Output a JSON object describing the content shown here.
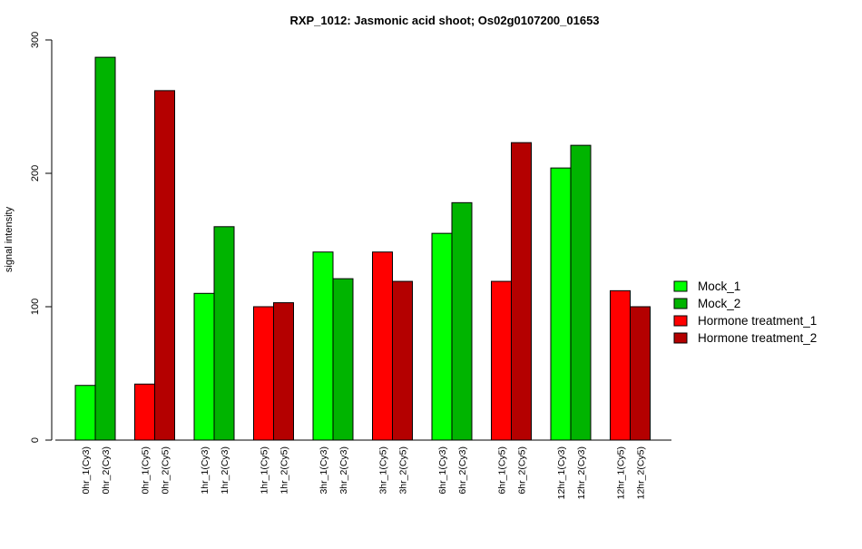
{
  "chart_data": {
    "type": "bar",
    "title": "RXP_1012: Jasmonic acid shoot; Os02g0107200_01653",
    "xlabel": "",
    "ylabel": "signal intensity",
    "ylim": [
      0,
      300
    ],
    "yticks": [
      0,
      100,
      200,
      300
    ],
    "grid": false,
    "legend_position": "right",
    "bars": [
      {
        "label": "0hr_1(Cy3)",
        "value": 41,
        "series": "Mock_1"
      },
      {
        "label": "0hr_2(Cy3)",
        "value": 287,
        "series": "Mock_2"
      },
      {
        "label": "0hr_1(Cy5)",
        "value": 42,
        "series": "Hormone treatment_1"
      },
      {
        "label": "0hr_2(Cy5)",
        "value": 262,
        "series": "Hormone treatment_2"
      },
      {
        "label": "1hr_1(Cy3)",
        "value": 110,
        "series": "Mock_1"
      },
      {
        "label": "1hr_2(Cy3)",
        "value": 160,
        "series": "Mock_2"
      },
      {
        "label": "1hr_1(Cy5)",
        "value": 100,
        "series": "Hormone treatment_1"
      },
      {
        "label": "1hr_2(Cy5)",
        "value": 103,
        "series": "Hormone treatment_2"
      },
      {
        "label": "3hr_1(Cy3)",
        "value": 141,
        "series": "Mock_1"
      },
      {
        "label": "3hr_2(Cy3)",
        "value": 121,
        "series": "Mock_2"
      },
      {
        "label": "3hr_1(Cy5)",
        "value": 141,
        "series": "Hormone treatment_1"
      },
      {
        "label": "3hr_2(Cy5)",
        "value": 119,
        "series": "Hormone treatment_2"
      },
      {
        "label": "6hr_1(Cy3)",
        "value": 155,
        "series": "Mock_1"
      },
      {
        "label": "6hr_2(Cy3)",
        "value": 178,
        "series": "Mock_2"
      },
      {
        "label": "6hr_1(Cy5)",
        "value": 119,
        "series": "Hormone treatment_1"
      },
      {
        "label": "6hr_2(Cy5)",
        "value": 223,
        "series": "Hormone treatment_2"
      },
      {
        "label": "12hr_1(Cy3)",
        "value": 204,
        "series": "Mock_1"
      },
      {
        "label": "12hr_2(Cy3)",
        "value": 221,
        "series": "Mock_2"
      },
      {
        "label": "12hr_1(Cy5)",
        "value": 112,
        "series": "Hormone treatment_1"
      },
      {
        "label": "12hr_2(Cy5)",
        "value": 100,
        "series": "Hormone treatment_2"
      }
    ],
    "legend": [
      {
        "name": "Mock_1",
        "color": "#00ff00"
      },
      {
        "name": "Mock_2",
        "color": "#00b400"
      },
      {
        "name": "Hormone treatment_1",
        "color": "#ff0000"
      },
      {
        "name": "Hormone treatment_2",
        "color": "#b40000"
      }
    ]
  }
}
